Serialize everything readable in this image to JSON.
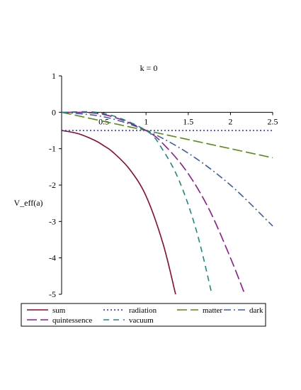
{
  "chart_data": {
    "type": "line",
    "title": "k = 0",
    "ylabel": "V_eff(a)",
    "xlabel": "",
    "xlim": [
      0,
      2.5
    ],
    "ylim": [
      -5,
      1
    ],
    "x_ticks": [
      "0.5",
      "1",
      "1.5",
      "2",
      "2.5"
    ],
    "y_ticks": [
      "1",
      "0",
      "-1",
      "-2",
      "-3",
      "-4",
      "-5"
    ],
    "grid": false,
    "legend_position": "bottom",
    "series": [
      {
        "name": "sum",
        "color": "#8B0A2A",
        "dash": "solid",
        "x": [
          0,
          0.2,
          0.4,
          0.5,
          0.6,
          0.8,
          1.0,
          1.2,
          1.35
        ],
        "y": [
          -0.5,
          -0.59,
          -0.78,
          -0.92,
          -1.08,
          -1.55,
          -2.3,
          -3.6,
          -5.0
        ]
      },
      {
        "name": "radiation",
        "color": "#1F2DBF",
        "dash": "dotted",
        "x": [
          0,
          0.5,
          1.0,
          1.5,
          2.0,
          2.5
        ],
        "y": [
          -0.5,
          -0.5,
          -0.5,
          -0.5,
          -0.5,
          -0.5
        ]
      },
      {
        "name": "matter",
        "color": "#5A8A1A",
        "dash": "long-dash",
        "x": [
          0,
          0.5,
          1.0,
          1.5,
          2.0,
          2.5
        ],
        "y": [
          0,
          -0.25,
          -0.5,
          -0.75,
          -1.0,
          -1.25
        ]
      },
      {
        "name": "dark",
        "color": "#3A5EA8",
        "dash": "dash-dot",
        "x": [
          0,
          0.5,
          1.0,
          1.5,
          2.0,
          2.5
        ],
        "y": [
          0,
          -0.125,
          -0.5,
          -1.125,
          -2.0,
          -3.125
        ]
      },
      {
        "name": "quintessence",
        "color": "#8E1A8E",
        "dash": "long-dash",
        "x": [
          0,
          0.5,
          1.0,
          1.25,
          1.5,
          1.75,
          2.0,
          2.17
        ],
        "y": [
          0,
          -0.06,
          -0.5,
          -0.98,
          -1.69,
          -2.68,
          -4.0,
          -5.0
        ]
      },
      {
        "name": "vacuum",
        "color": "#1A8A80",
        "dash": "dashed",
        "x": [
          0,
          0.5,
          1.0,
          1.2,
          1.4,
          1.6,
          1.78
        ],
        "y": [
          0,
          -0.03,
          -0.5,
          -1.04,
          -1.92,
          -3.28,
          -5.0
        ]
      }
    ]
  }
}
